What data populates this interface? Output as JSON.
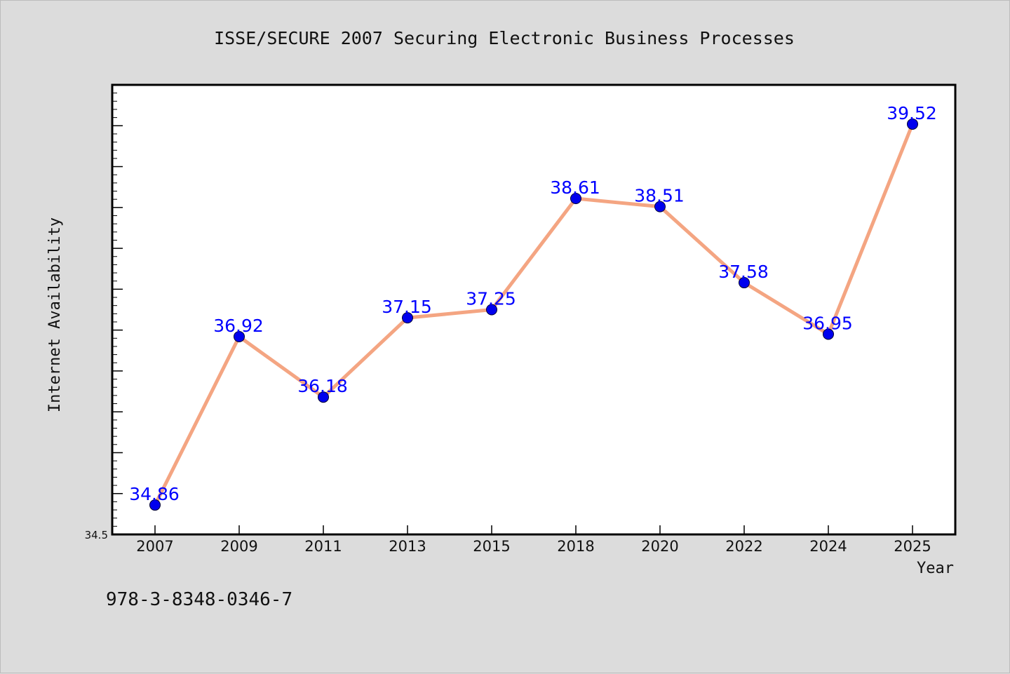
{
  "chart_data": {
    "type": "line",
    "title": "ISSE/SECURE 2007 Securing Electronic Business Processes",
    "xlabel": "Year",
    "ylabel": "Internet Availability",
    "categories": [
      "2007",
      "2009",
      "2011",
      "2013",
      "2015",
      "2018",
      "2020",
      "2022",
      "2024",
      "2025"
    ],
    "series": [
      {
        "values": [
          34.86,
          36.92,
          36.18,
          37.15,
          37.25,
          38.61,
          38.51,
          37.58,
          36.95,
          39.52
        ],
        "labels": [
          "34.86",
          "36.92",
          "36.18",
          "37.15",
          "37.25",
          "38.61",
          "38.51",
          "37.58",
          "36.95",
          "39.52"
        ]
      }
    ],
    "ylim": [
      34.5,
      40.0
    ],
    "y_tick_labels": [
      "34.5"
    ],
    "grid": false,
    "line_color": "#f4a582",
    "marker_color": "#0000ee",
    "label_color": "#0000ff"
  },
  "footer": {
    "text": "978-3-8348-0346-7"
  }
}
